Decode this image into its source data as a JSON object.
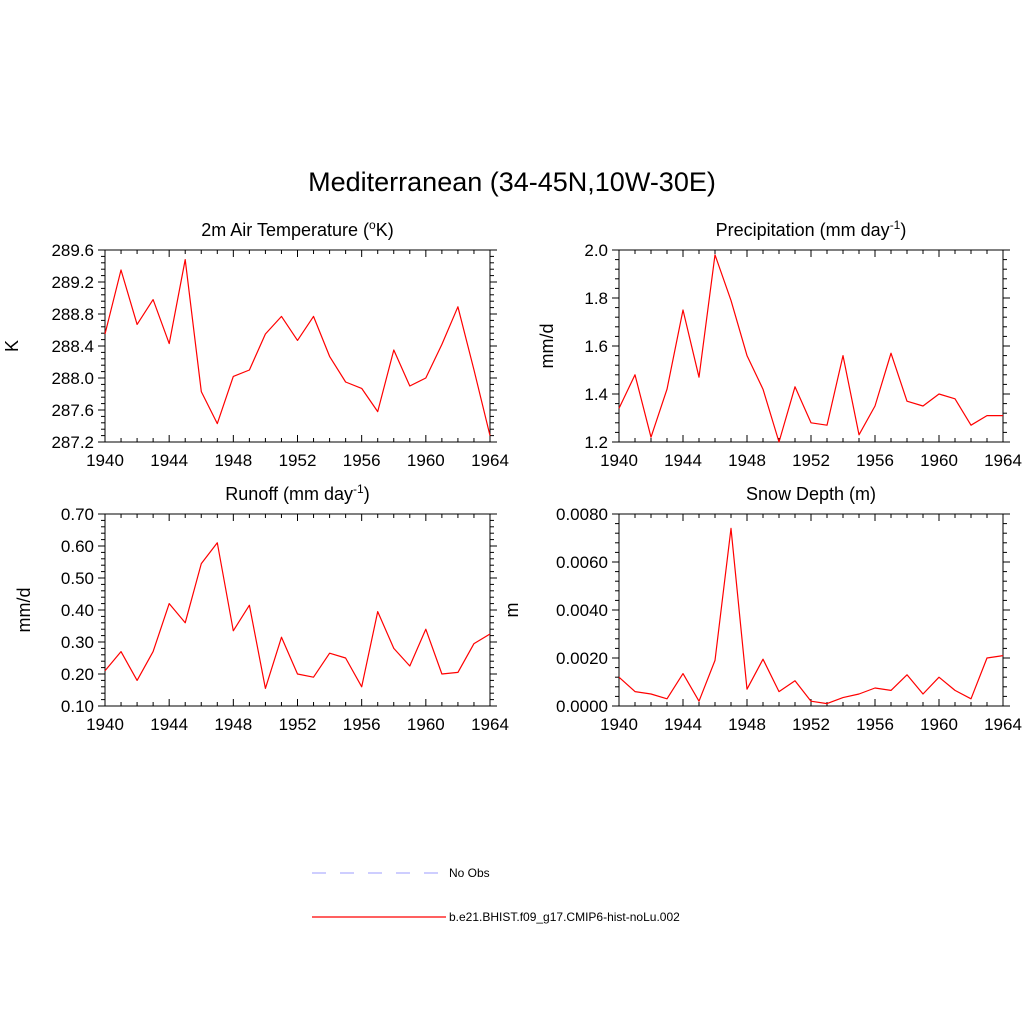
{
  "title": "Mediterranean (34-45N,10W-30E)",
  "colors": {
    "model": "#ff0000",
    "obs": "#b0b0ff",
    "axis": "#000000"
  },
  "legend": {
    "obs_label": "No Obs",
    "model_label": "b.e21.BHIST.f09_g17.CMIP6-hist-noLu.002"
  },
  "chart_data": [
    {
      "type": "line",
      "title_main": "2m Air Temperature (",
      "title_sup": "o",
      "title_end": "K)",
      "ylabel": "K",
      "xlim": [
        1940,
        1964
      ],
      "xticks": [
        1940,
        1944,
        1948,
        1952,
        1956,
        1960,
        1964
      ],
      "ylim": [
        287.2,
        289.6
      ],
      "yticks": [
        "287.2",
        "287.6",
        "288.0",
        "288.4",
        "288.8",
        "289.2",
        "289.6"
      ],
      "series": [
        {
          "x": [
            1940,
            1941,
            1942,
            1943,
            1944,
            1945,
            1946,
            1947,
            1948,
            1949,
            1950,
            1951,
            1952,
            1953,
            1954,
            1955,
            1956,
            1957,
            1958,
            1959,
            1960,
            1961,
            1962,
            1963,
            1964
          ],
          "values": [
            288.55,
            289.35,
            288.67,
            288.98,
            288.43,
            289.48,
            287.83,
            287.43,
            288.02,
            288.1,
            288.55,
            288.77,
            288.47,
            288.77,
            288.27,
            287.95,
            287.87,
            287.58,
            288.35,
            287.9,
            288.0,
            288.42,
            288.89,
            288.1,
            287.28
          ]
        }
      ]
    },
    {
      "type": "line",
      "title_main": "Precipitation (mm day",
      "title_sup": "-1",
      "title_end": ")",
      "ylabel": "mm/d",
      "xlim": [
        1940,
        1964
      ],
      "xticks": [
        1940,
        1944,
        1948,
        1952,
        1956,
        1960,
        1964
      ],
      "ylim": [
        1.2,
        2.0
      ],
      "yticks": [
        "1.2",
        "1.4",
        "1.6",
        "1.8",
        "2.0"
      ],
      "series": [
        {
          "x": [
            1940,
            1941,
            1942,
            1943,
            1944,
            1945,
            1946,
            1947,
            1948,
            1949,
            1950,
            1951,
            1952,
            1953,
            1954,
            1955,
            1956,
            1957,
            1958,
            1959,
            1960,
            1961,
            1962,
            1963,
            1964
          ],
          "values": [
            1.34,
            1.48,
            1.22,
            1.42,
            1.75,
            1.47,
            1.98,
            1.79,
            1.56,
            1.42,
            1.2,
            1.43,
            1.28,
            1.27,
            1.56,
            1.23,
            1.35,
            1.57,
            1.37,
            1.35,
            1.4,
            1.38,
            1.27,
            1.31,
            1.31
          ]
        }
      ]
    },
    {
      "type": "line",
      "title_main": "Runoff (mm day",
      "title_sup": "-1",
      "title_end": ")",
      "ylabel": "mm/d",
      "xlim": [
        1940,
        1964
      ],
      "xticks": [
        1940,
        1944,
        1948,
        1952,
        1956,
        1960,
        1964
      ],
      "ylim": [
        0.1,
        0.7
      ],
      "yticks": [
        "0.10",
        "0.20",
        "0.30",
        "0.40",
        "0.50",
        "0.60",
        "0.70"
      ],
      "series": [
        {
          "x": [
            1940,
            1941,
            1942,
            1943,
            1944,
            1945,
            1946,
            1947,
            1948,
            1949,
            1950,
            1951,
            1952,
            1953,
            1954,
            1955,
            1956,
            1957,
            1958,
            1959,
            1960,
            1961,
            1962,
            1963,
            1964
          ],
          "values": [
            0.21,
            0.27,
            0.18,
            0.27,
            0.42,
            0.36,
            0.545,
            0.61,
            0.335,
            0.415,
            0.155,
            0.315,
            0.2,
            0.19,
            0.265,
            0.25,
            0.16,
            0.395,
            0.28,
            0.225,
            0.34,
            0.2,
            0.205,
            0.295,
            0.325
          ]
        }
      ]
    },
    {
      "type": "line",
      "title_main": "Snow Depth (m)",
      "title_sup": "",
      "title_end": "",
      "ylabel": "m",
      "xlim": [
        1940,
        1964
      ],
      "xticks": [
        1940,
        1944,
        1948,
        1952,
        1956,
        1960,
        1964
      ],
      "ylim": [
        0.0,
        0.008
      ],
      "yticks": [
        "0.0000",
        "0.0020",
        "0.0040",
        "0.0060",
        "0.0080"
      ],
      "series": [
        {
          "x": [
            1940,
            1941,
            1942,
            1943,
            1944,
            1945,
            1946,
            1947,
            1948,
            1949,
            1950,
            1951,
            1952,
            1953,
            1954,
            1955,
            1956,
            1957,
            1958,
            1959,
            1960,
            1961,
            1962,
            1963,
            1964
          ],
          "values": [
            0.0012,
            0.0006,
            0.0005,
            0.0003,
            0.00135,
            0.0002,
            0.0019,
            0.0074,
            0.0007,
            0.00195,
            0.0006,
            0.00105,
            0.0002,
            0.0001,
            0.00035,
            0.0005,
            0.00075,
            0.00065,
            0.0013,
            0.0005,
            0.0012,
            0.00065,
            0.0003,
            0.002,
            0.0021
          ]
        }
      ]
    }
  ]
}
